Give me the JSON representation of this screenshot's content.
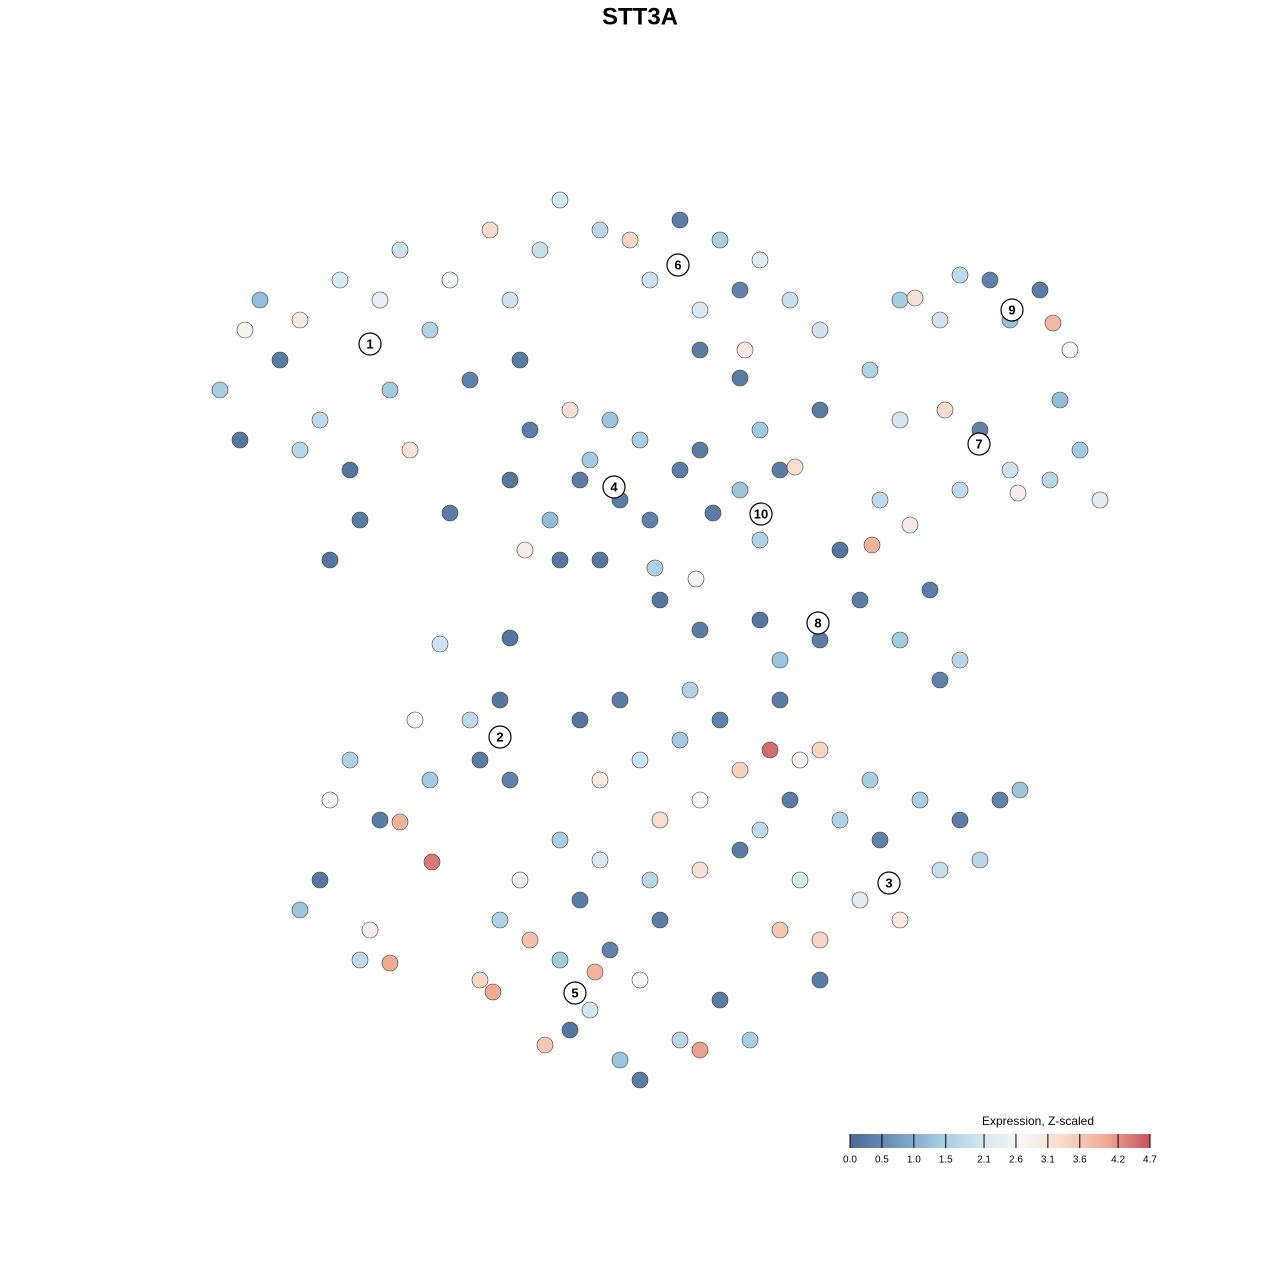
{
  "chart_data": {
    "type": "scatter",
    "title": "STT3A",
    "xlim": [
      0,
      128
    ],
    "ylim": [
      0,
      128
    ],
    "x": [
      22,
      24.5,
      26,
      28,
      30,
      32,
      34,
      35,
      36,
      38,
      39,
      40,
      41,
      43,
      45,
      47,
      49,
      51,
      52,
      54,
      33,
      30,
      56,
      24,
      60,
      63,
      65,
      68,
      70,
      72,
      74,
      76,
      79,
      82,
      70,
      74.5,
      51,
      53,
      55,
      57,
      59,
      60,
      62,
      64,
      56,
      65,
      68,
      52.5,
      58,
      61,
      74,
      76,
      78,
      79.5,
      90,
      91.5,
      94,
      99,
      101,
      104,
      105.3,
      107,
      96,
      106,
      87,
      90,
      94.5,
      98,
      101,
      105,
      108,
      110,
      101.8,
      96,
      70,
      76,
      82,
      84,
      86,
      87.2,
      90,
      93,
      96,
      94,
      70,
      76,
      82,
      66,
      78,
      88,
      91,
      33,
      35,
      38,
      40,
      41.5,
      43,
      43.2,
      47,
      48,
      50,
      30,
      32,
      37,
      39,
      36,
      51,
      79,
      80,
      82,
      84,
      86,
      88,
      90,
      92,
      94,
      96,
      98,
      100,
      102,
      78,
      82,
      87,
      58,
      60,
      62,
      64,
      66,
      68,
      70,
      72,
      74,
      77,
      76,
      80,
      82,
      56,
      60,
      65,
      70,
      74,
      78,
      69,
      48,
      50,
      52,
      53,
      54.5,
      56,
      58,
      59,
      61,
      62,
      64,
      66,
      68,
      70,
      72,
      75,
      59.5,
      57,
      64,
      49.3,
      44,
      51,
      45,
      69.6,
      65.5,
      74,
      71.3
    ],
    "y": [
      89,
      95,
      98,
      92,
      96,
      86,
      100,
      81,
      76,
      98,
      89,
      103,
      83,
      95,
      100,
      90,
      105,
      98,
      92,
      103,
      72,
      83,
      108,
      84,
      105,
      104,
      100,
      106,
      97,
      104,
      99,
      102,
      98,
      95,
      93,
      93,
      80,
      85,
      76,
      87,
      82,
      72,
      78,
      84,
      72,
      76,
      81,
      73,
      80,
      86,
      79,
      74,
      81,
      81.3,
      98,
      98.2,
      96,
      100,
      96,
      99,
      95.7,
      93,
      100.5,
      88,
      91,
      86,
      87,
      85,
      81,
      80,
      83,
      78,
      78.7,
      79,
      83,
      85,
      87,
      73,
      68,
      73.5,
      64,
      69,
      62,
      60,
      65,
      66,
      64,
      68,
      62,
      78,
      75.5,
      48,
      52,
      46,
      45.8,
      56,
      50,
      41.8,
      56,
      52,
      58,
      37,
      40,
      35,
      31.7,
      32,
      50,
      48,
      40,
      34,
      46,
      38,
      44,
      36,
      48,
      41,
      46,
      42,
      48,
      49,
      35,
      30,
      50,
      56,
      50,
      58,
      52,
      46,
      54,
      48,
      56,
      51,
      53,
      45,
      52,
      53,
      44,
      42,
      40,
      41,
      43,
      58,
      59,
      30,
      36,
      40,
      34,
      23.5,
      32,
      38,
      27,
      33,
      22,
      30,
      36,
      24,
      23,
      28,
      24,
      30.8,
      25,
      20,
      28.8,
      63.6,
      64.2,
      76.7,
      70.1,
      71.2,
      90.2,
      76.7
    ],
    "values": [
      1.5,
      2.8,
      1.2,
      0.3,
      3.0,
      1.8,
      2.2,
      0.2,
      0.3,
      2.4,
      1.4,
      2.0,
      3.1,
      1.6,
      2.6,
      0.4,
      3.3,
      2.0,
      0.3,
      1.9,
      0.2,
      1.7,
      2.1,
      0.2,
      1.7,
      3.4,
      2.0,
      0.3,
      2.2,
      1.5,
      0.4,
      2.3,
      1.9,
      2.0,
      0.3,
      3.0,
      0.2,
      0.3,
      1.2,
      3.2,
      1.4,
      0.2,
      0.3,
      1.5,
      0.2,
      0.4,
      0.3,
      2.9,
      0.3,
      1.3,
      1.3,
      1.6,
      0.3,
      3.3,
      1.5,
      3.2,
      2.0,
      0.4,
      1.3,
      0.3,
      3.8,
      2.6,
      1.8,
      1.2,
      1.6,
      2.1,
      3.3,
      0.4,
      2.0,
      1.7,
      1.4,
      2.3,
      2.9,
      1.8,
      0.3,
      1.4,
      0.3,
      0.2,
      0.3,
      3.9,
      1.4,
      0.3,
      1.7,
      0.4,
      0.3,
      0.2,
      0.3,
      0.2,
      1.3,
      1.8,
      3.0,
      2.8,
      1.6,
      0.3,
      3.9,
      2.7,
      1.4,
      4.4,
      1.8,
      0.3,
      0.2,
      1.3,
      0.2,
      2.9,
      4.0,
      1.8,
      0.4,
      0.3,
      2.1,
      3.4,
      1.6,
      2.3,
      0.4,
      3.0,
      1.5,
      1.9,
      0.3,
      1.7,
      0.4,
      1.3,
      3.6,
      0.3,
      1.5,
      0.2,
      3.0,
      0.3,
      2.0,
      3.3,
      1.4,
      2.6,
      0.4,
      3.5,
      4.5,
      1.8,
      2.8,
      3.4,
      1.5,
      2.2,
      1.7,
      3.2,
      0.3,
      0.3,
      1.6,
      3.4,
      1.6,
      2.4,
      3.7,
      3.6,
      1.4,
      0.3,
      2.1,
      0.4,
      1.3,
      2.6,
      0.3,
      1.7,
      4.1,
      0.3,
      1.5,
      3.9,
      0.2,
      0.3,
      4.0,
      2.0,
      0.2,
      0.3,
      2.7,
      1.6,
      0.3,
      0.3
    ],
    "clusters": [
      {
        "label": "1",
        "x": 37,
        "y": 93.6
      },
      {
        "label": "2",
        "x": 50,
        "y": 54.3
      },
      {
        "label": "3",
        "x": 88.9,
        "y": 39.7
      },
      {
        "label": "4",
        "x": 61.4,
        "y": 79.3
      },
      {
        "label": "5",
        "x": 57.5,
        "y": 28.7
      },
      {
        "label": "6",
        "x": 67.8,
        "y": 101.5
      },
      {
        "label": "7",
        "x": 97.9,
        "y": 83.6
      },
      {
        "label": "8",
        "x": 81.8,
        "y": 65.7
      },
      {
        "label": "9",
        "x": 101.2,
        "y": 97
      },
      {
        "label": "10",
        "x": 76.1,
        "y": 76.6
      }
    ],
    "colorbar": {
      "title": "Expression, Z-scaled",
      "lim": [
        0,
        4.7
      ],
      "ticks": [
        {
          "value": 0,
          "label": "0.0"
        },
        0.5,
        {
          "value": 1,
          "label": "1.0"
        },
        1.5,
        2.1,
        2.6,
        3.1,
        3.6,
        4.2,
        4.7
      ],
      "colors": [
        "#4a6a92",
        "#6d93bd",
        "#9ec8df",
        "#cfe3ef",
        "#f7f7f7",
        "#f8d9c9",
        "#eea98f",
        "#c8525e"
      ]
    }
  }
}
